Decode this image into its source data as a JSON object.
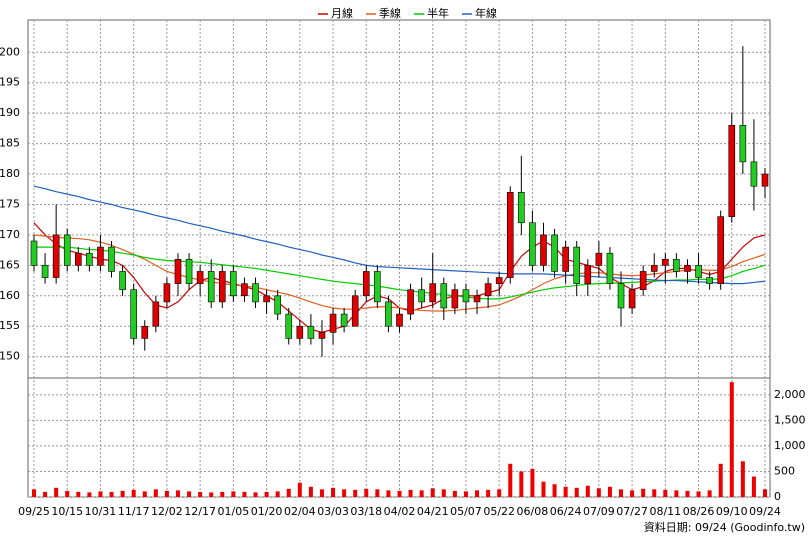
{
  "chart_data": {
    "type": "candlestick",
    "categories": [
      "09/25",
      null,
      null,
      "10/15",
      null,
      null,
      "10/31",
      null,
      null,
      "11/17",
      null,
      null,
      "12/02",
      null,
      null,
      "12/17",
      null,
      null,
      "01/05",
      null,
      null,
      "01/20",
      null,
      null,
      "02/04",
      null,
      null,
      "03/03",
      null,
      null,
      "03/18",
      null,
      null,
      "04/02",
      null,
      null,
      "04/21",
      null,
      null,
      "05/07",
      null,
      null,
      "05/22",
      null,
      null,
      "06/08",
      null,
      null,
      "06/24",
      null,
      null,
      "07/09",
      null,
      null,
      "07/27",
      null,
      null,
      "08/11",
      null,
      null,
      "08/26",
      null,
      null,
      "09/10",
      null,
      null,
      "09/24"
    ],
    "open": [
      169,
      165,
      163,
      170,
      165,
      167,
      165,
      168,
      164,
      161,
      153,
      155,
      159,
      162,
      166,
      162,
      164,
      159,
      164,
      160,
      162,
      159,
      160,
      157,
      153,
      155,
      153,
      154,
      157,
      155,
      160,
      164,
      159,
      155,
      157,
      161,
      159,
      162,
      158,
      161,
      159,
      160,
      162,
      163,
      177,
      172,
      165,
      170,
      164,
      168,
      162,
      165,
      167,
      162,
      158,
      161,
      164,
      165,
      166,
      164,
      165,
      163,
      162,
      173,
      188,
      182,
      178
    ],
    "high": [
      170,
      167,
      175,
      171,
      168,
      168,
      170,
      169,
      165,
      162,
      156,
      160,
      163,
      167,
      167,
      165,
      166,
      165,
      165,
      163,
      163,
      161,
      161,
      158,
      156,
      157,
      156,
      158,
      158,
      161,
      165,
      165,
      160,
      158,
      162,
      163,
      167,
      163,
      162,
      162,
      161,
      163,
      164,
      178,
      183,
      174,
      172,
      171,
      169,
      169,
      166,
      169,
      168,
      164,
      162,
      165,
      167,
      167,
      167,
      166,
      167,
      164,
      174,
      190,
      201,
      189,
      181
    ],
    "low": [
      164,
      162,
      162,
      164,
      164,
      164,
      164,
      163,
      160,
      152,
      151,
      154,
      158,
      160,
      161,
      160,
      158,
      158,
      159,
      159,
      158,
      157,
      156,
      152,
      152,
      152,
      150,
      152,
      154,
      155,
      159,
      158,
      154,
      154,
      156,
      158,
      158,
      156,
      157,
      157,
      157,
      158,
      160,
      162,
      170,
      164,
      164,
      163,
      162,
      160,
      160,
      163,
      161,
      155,
      157,
      160,
      163,
      162,
      163,
      162,
      162,
      161,
      161,
      172,
      180,
      174,
      176
    ],
    "close": [
      165,
      163,
      170,
      165,
      167,
      165,
      168,
      164,
      161,
      153,
      155,
      159,
      162,
      166,
      162,
      164,
      159,
      164,
      160,
      162,
      159,
      160,
      157,
      153,
      155,
      153,
      154,
      157,
      155,
      160,
      164,
      159,
      155,
      157,
      161,
      159,
      162,
      158,
      161,
      159,
      160,
      162,
      163,
      177,
      172,
      165,
      170,
      164,
      168,
      162,
      165,
      167,
      162,
      158,
      161,
      164,
      165,
      166,
      164,
      165,
      163,
      162,
      173,
      188,
      182,
      178,
      180
    ],
    "up_color": "#e00000",
    "down_color": "#22cc22",
    "series": [
      {
        "name": "月線",
        "color": "#cc0000",
        "values": [
          172,
          170,
          168.5,
          167.5,
          167,
          166.5,
          166,
          165.8,
          165,
          163,
          160.5,
          158.5,
          158,
          159,
          161,
          162.5,
          163,
          162.5,
          162,
          161.5,
          161,
          160,
          159,
          157.5,
          156,
          154.5,
          154,
          154.5,
          155,
          157,
          159,
          160,
          159.5,
          158,
          157.5,
          158,
          158.5,
          159.5,
          160,
          160,
          160,
          160.5,
          161,
          164,
          166.5,
          168,
          169,
          168,
          166,
          165.5,
          165,
          164.5,
          163,
          162,
          161,
          161.5,
          162.5,
          164,
          164.5,
          164.5,
          164,
          163.5,
          164,
          166,
          168,
          169.5,
          170
        ]
      },
      {
        "name": "季線",
        "color": "#e06020",
        "values": [
          170,
          169.8,
          169.6,
          169.5,
          169.4,
          169.2,
          168.8,
          168.3,
          167.6,
          166.8,
          166,
          165,
          164,
          163.5,
          163,
          162.6,
          162.3,
          162,
          161.8,
          161.6,
          161.4,
          161,
          160.6,
          160.2,
          159.6,
          159,
          158.4,
          158,
          157.8,
          157.8,
          158,
          158.2,
          158.2,
          158,
          157.8,
          157.6,
          157.5,
          157.5,
          157.6,
          157.8,
          158,
          158.2,
          158.5,
          159.2,
          160,
          161,
          162,
          162.8,
          163.3,
          163.6,
          163.8,
          163.8,
          163.6,
          163.4,
          163.3,
          163.4,
          163.6,
          163.8,
          164,
          164.2,
          164.3,
          164.2,
          164.2,
          164.8,
          165.6,
          166.2,
          166.8
        ]
      },
      {
        "name": "半年",
        "color": "#00cc00",
        "values": [
          168,
          168,
          168,
          168,
          167.8,
          167.6,
          167.5,
          167.3,
          167,
          166.7,
          166.3,
          166,
          165.8,
          165.7,
          165.6,
          165.5,
          165.3,
          165.1,
          164.9,
          164.7,
          164.5,
          164.2,
          163.9,
          163.6,
          163.3,
          163,
          162.7,
          162.4,
          162.2,
          162,
          161.8,
          161.6,
          161.3,
          161,
          160.8,
          160.6,
          160.4,
          160.2,
          160,
          159.8,
          159.6,
          159.5,
          159.5,
          159.8,
          160.2,
          160.6,
          161,
          161.3,
          161.5,
          161.7,
          161.9,
          162,
          162.1,
          162.1,
          162.2,
          162.3,
          162.4,
          162.5,
          162.6,
          162.6,
          162.7,
          162.7,
          162.8,
          163.3,
          164,
          164.5,
          165
        ]
      },
      {
        "name": "年線",
        "color": "#2060c0",
        "values": [
          178,
          177.6,
          177.1,
          176.7,
          176.3,
          175.8,
          175.4,
          175,
          174.5,
          174.1,
          173.7,
          173.2,
          172.8,
          172.4,
          171.9,
          171.5,
          171.1,
          170.6,
          170.2,
          169.8,
          169.3,
          168.9,
          168.5,
          168,
          167.6,
          167.2,
          166.7,
          166.3,
          165.9,
          165.4,
          165,
          164.8,
          164.7,
          164.6,
          164.5,
          164.4,
          164.3,
          164.2,
          164.1,
          164,
          163.9,
          163.8,
          163.7,
          163.6,
          163.6,
          163.6,
          163.6,
          163.5,
          163.4,
          163.3,
          163.2,
          163.1,
          163,
          162.9,
          162.8,
          162.7,
          162.6,
          162.5,
          162.5,
          162.4,
          162.3,
          162.2,
          162.1,
          162,
          162,
          162.2,
          162.4
        ]
      }
    ],
    "ylim": [
      146.5,
      205.3
    ],
    "yticks": [
      150,
      155,
      160,
      165,
      170,
      175,
      180,
      185,
      190,
      195,
      200
    ],
    "grid": true,
    "volume": {
      "color": "#ee0000",
      "values": [
        150,
        100,
        180,
        120,
        100,
        90,
        110,
        100,
        120,
        140,
        110,
        150,
        120,
        130,
        110,
        100,
        90,
        100,
        110,
        100,
        90,
        100,
        110,
        160,
        280,
        200,
        150,
        180,
        150,
        140,
        160,
        150,
        130,
        120,
        140,
        130,
        170,
        150,
        120,
        110,
        130,
        140,
        150,
        650,
        500,
        550,
        300,
        250,
        200,
        180,
        220,
        170,
        200,
        150,
        130,
        160,
        150,
        140,
        130,
        120,
        110,
        130,
        650,
        2250,
        700,
        400,
        150
      ],
      "ylim": [
        0,
        2330
      ],
      "yticks": [
        0,
        500,
        {
          "value": 1000,
          "label": "1,000"
        },
        {
          "value": 1500,
          "label": "1,500"
        },
        {
          "value": 2000,
          "label": "2,000"
        }
      ]
    },
    "footer": "資料日期: 09/24 (Goodinfo.tw)"
  }
}
